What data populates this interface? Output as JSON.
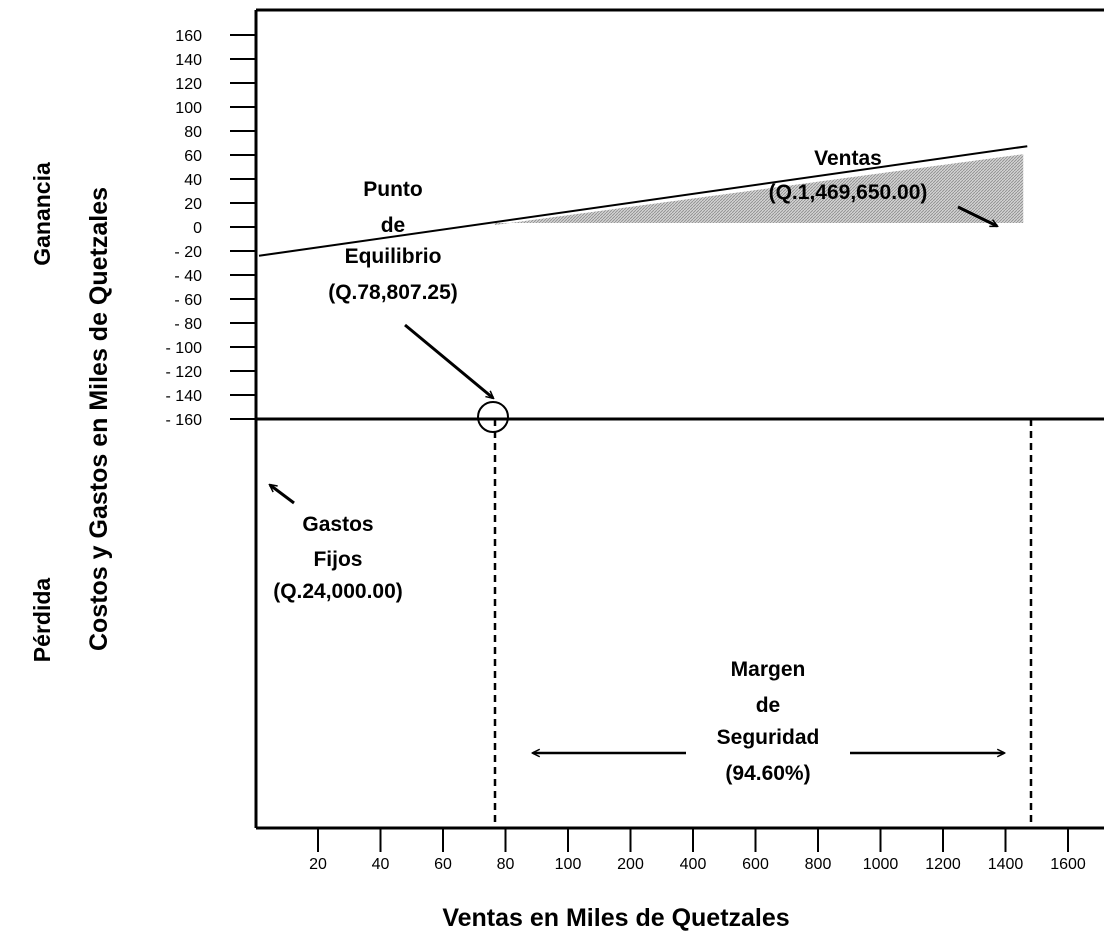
{
  "chart_data": {
    "type": "line",
    "title": "",
    "xlabel": "Ventas en Miles de Quetzales",
    "ylabel": "Costos y Gastos en Miles de Quetzales",
    "side_labels": {
      "top": "Ganancia",
      "bottom": "Pérdida"
    },
    "x_ticks": [
      "20",
      "40",
      "60",
      "80",
      "100",
      "200",
      "400",
      "600",
      "800",
      "1000",
      "1200",
      "1400",
      "1600"
    ],
    "y_ticks": [
      "160",
      "140",
      "120",
      "100",
      "80",
      "60",
      "40",
      "20",
      "0",
      "- 20",
      "- 40",
      "- 60",
      "- 80",
      "- 100",
      "- 120",
      "- 140",
      "- 160"
    ],
    "ylim": [
      -160,
      160
    ],
    "grid": false,
    "series": [
      {
        "x": [
          0,
          78.807,
          1469.65
        ],
        "y": [
          -24,
          0,
          64
        ]
      }
    ],
    "shaded_profit_area": true,
    "annotations": {
      "break_even": [
        "Punto",
        "de",
        "Equilibrio",
        "(Q.78,807.25)"
      ],
      "sales": [
        "Ventas",
        "(Q.1,469,650.00)"
      ],
      "fixed_costs": [
        "Gastos",
        "Fijos",
        "(Q.24,000.00)"
      ],
      "margin": [
        "Margen",
        "de",
        "Seguridad",
        "(94.60%)"
      ]
    },
    "colors": {
      "line": "#000000",
      "shade": "#b8b8b8",
      "background": "#ffffff"
    }
  }
}
